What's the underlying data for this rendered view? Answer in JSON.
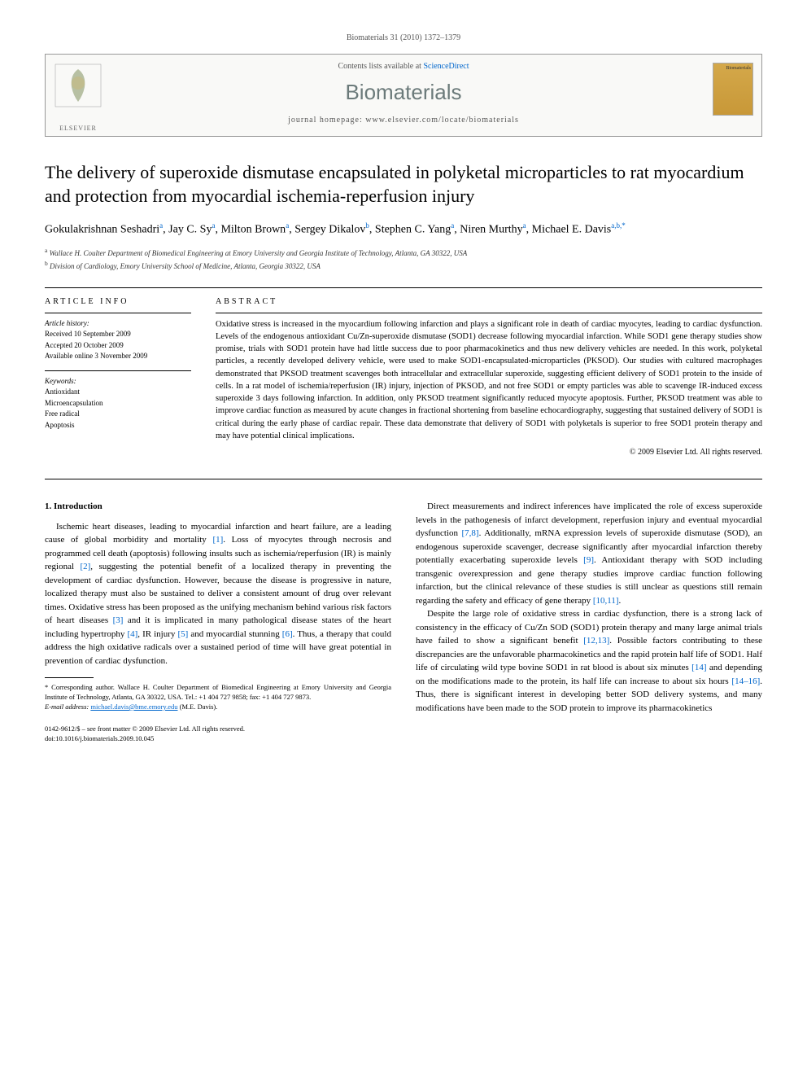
{
  "header": {
    "citation": "Biomaterials 31 (2010) 1372–1379",
    "contents_prefix": "Contents lists available at ",
    "contents_link": "ScienceDirect",
    "journal_name": "Biomaterials",
    "homepage_label": "journal homepage: www.elsevier.com/locate/biomaterials",
    "publisher_label": "ELSEVIER",
    "cover_label": "Biomaterials"
  },
  "article": {
    "title": "The delivery of superoxide dismutase encapsulated in polyketal microparticles to rat myocardium and protection from myocardial ischemia-reperfusion injury",
    "authors_html": "Gokulakrishnan Seshadri<sup>a</sup>, Jay C. Sy<sup>a</sup>, Milton Brown<sup>a</sup>, Sergey Dikalov<sup>b</sup>, Stephen C. Yang<sup>a</sup>, Niren Murthy<sup>a</sup>, Michael E. Davis<sup>a,b,*</sup>",
    "affiliations": {
      "a": "Wallace H. Coulter Department of Biomedical Engineering at Emory University and Georgia Institute of Technology, Atlanta, GA 30322, USA",
      "b": "Division of Cardiology, Emory University School of Medicine, Atlanta, Georgia 30322, USA"
    }
  },
  "article_info": {
    "heading": "ARTICLE INFO",
    "history_label": "Article history:",
    "received": "Received 10 September 2009",
    "accepted": "Accepted 20 October 2009",
    "online": "Available online 3 November 2009",
    "keywords_label": "Keywords:",
    "keywords": [
      "Antioxidant",
      "Microencapsulation",
      "Free radical",
      "Apoptosis"
    ]
  },
  "abstract": {
    "heading": "ABSTRACT",
    "text": "Oxidative stress is increased in the myocardium following infarction and plays a significant role in death of cardiac myocytes, leading to cardiac dysfunction. Levels of the endogenous antioxidant Cu/Zn-superoxide dismutase (SOD1) decrease following myocardial infarction. While SOD1 gene therapy studies show promise, trials with SOD1 protein have had little success due to poor pharmacokinetics and thus new delivery vehicles are needed. In this work, polyketal particles, a recently developed delivery vehicle, were used to make SOD1-encapsulated-microparticles (PKSOD). Our studies with cultured macrophages demonstrated that PKSOD treatment scavenges both intracellular and extracellular superoxide, suggesting efficient delivery of SOD1 protein to the inside of cells. In a rat model of ischemia/reperfusion (IR) injury, injection of PKSOD, and not free SOD1 or empty particles was able to scavenge IR-induced excess superoxide 3 days following infarction. In addition, only PKSOD treatment significantly reduced myocyte apoptosis. Further, PKSOD treatment was able to improve cardiac function as measured by acute changes in fractional shortening from baseline echocardiography, suggesting that sustained delivery of SOD1 is critical during the early phase of cardiac repair. These data demonstrate that delivery of SOD1 with polyketals is superior to free SOD1 protein therapy and may have potential clinical implications.",
    "copyright": "© 2009 Elsevier Ltd. All rights reserved."
  },
  "body": {
    "section1_heading": "1. Introduction",
    "col1_para1": "Ischemic heart diseases, leading to myocardial infarction and heart failure, are a leading cause of global morbidity and mortality [1]. Loss of myocytes through necrosis and programmed cell death (apoptosis) following insults such as ischemia/reperfusion (IR) is mainly regional [2], suggesting the potential benefit of a localized therapy in preventing the development of cardiac dysfunction. However, because the disease is progressive in nature, localized therapy must also be sustained to deliver a consistent amount of drug over relevant times. Oxidative stress has been proposed as the unifying mechanism behind various risk factors of heart diseases [3] and it is implicated in many pathological disease states of the heart including hypertrophy [4], IR injury [5] and myocardial stunning [6]. Thus, a therapy that could address the high oxidative radicals over a sustained period of time will have great potential in prevention of cardiac dysfunction.",
    "col2_para1": "Direct measurements and indirect inferences have implicated the role of excess superoxide levels in the pathogenesis of infarct development, reperfusion injury and eventual myocardial dysfunction [7,8]. Additionally, mRNA expression levels of superoxide dismutase (SOD), an endogenous superoxide scavenger, decrease significantly after myocardial infarction thereby potentially exacerbating superoxide levels [9]. Antioxidant therapy with SOD including transgenic overexpression and gene therapy studies improve cardiac function following infarction, but the clinical relevance of these studies is still unclear as questions still remain regarding the safety and efficacy of gene therapy [10,11].",
    "col2_para2": "Despite the large role of oxidative stress in cardiac dysfunction, there is a strong lack of consistency in the efficacy of Cu/Zn SOD (SOD1) protein therapy and many large animal trials have failed to show a significant benefit [12,13]. Possible factors contributing to these discrepancies are the unfavorable pharmacokinetics and the rapid protein half life of SOD1. Half life of circulating wild type bovine SOD1 in rat blood is about six minutes [14] and depending on the modifications made to the protein, its half life can increase to about six hours [14–16]. Thus, there is significant interest in developing better SOD delivery systems, and many modifications have been made to the SOD protein to improve its pharmacokinetics"
  },
  "footnotes": {
    "corresponding": "* Corresponding author. Wallace H. Coulter Department of Biomedical Engineering at Emory University and Georgia Institute of Technology, Atlanta, GA 30322, USA. Tel.: +1 404 727 9858; fax: +1 404 727 9873.",
    "email_label": "E-mail address:",
    "email": "michael.davis@bme.emory.edu",
    "email_suffix": "(M.E. Davis)."
  },
  "footer": {
    "copyright_line": "0142-9612/$ – see front matter © 2009 Elsevier Ltd. All rights reserved.",
    "doi": "doi:10.1016/j.biomaterials.2009.10.045"
  },
  "colors": {
    "link": "#0066cc",
    "journal_name": "#6b7a7a",
    "border": "#999999"
  }
}
